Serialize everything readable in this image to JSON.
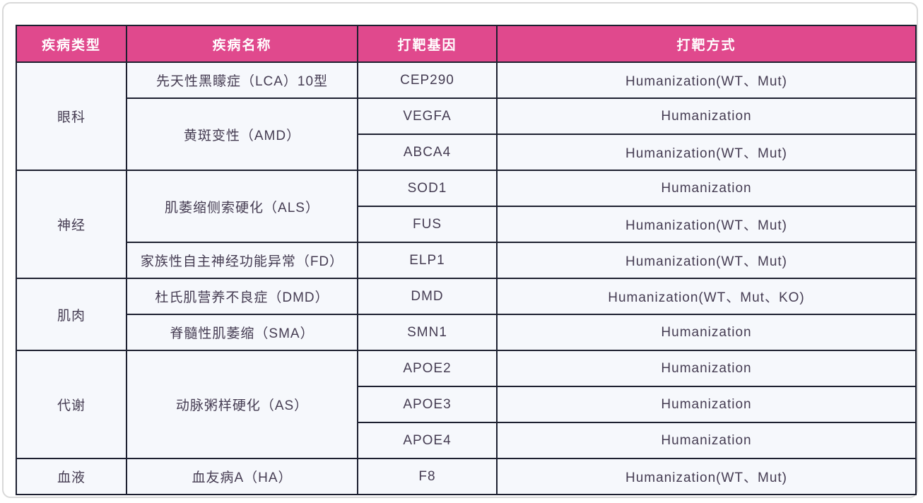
{
  "colors": {
    "header_bg": "#e0498d",
    "header_text": "#ffffff",
    "cell_bg": "#f6f8fc",
    "cell_text": "#453c52",
    "border": "#1d2030"
  },
  "table": {
    "columns": [
      {
        "key": "disease-type",
        "label": "疾病类型"
      },
      {
        "key": "disease-name",
        "label": "疾病名称"
      },
      {
        "key": "target-gene",
        "label": "打靶基因"
      },
      {
        "key": "target-method",
        "label": "打靶方式"
      }
    ],
    "rows": [
      {
        "cells": [
          {
            "col": "disease-type",
            "text": "眼科",
            "rowspan": 3
          },
          {
            "col": "disease-name",
            "text": "先天性黑矇症（LCA）10型"
          },
          {
            "col": "target-gene",
            "text": "CEP290"
          },
          {
            "col": "target-method",
            "text": "Humanization(WT、Mut)"
          }
        ]
      },
      {
        "cells": [
          {
            "col": "disease-name",
            "text": "黄斑变性（AMD）",
            "rowspan": 2
          },
          {
            "col": "target-gene",
            "text": "VEGFA"
          },
          {
            "col": "target-method",
            "text": "Humanization"
          }
        ]
      },
      {
        "cells": [
          {
            "col": "target-gene",
            "text": "ABCA4"
          },
          {
            "col": "target-method",
            "text": "Humanization(WT、Mut)"
          }
        ]
      },
      {
        "cells": [
          {
            "col": "disease-type",
            "text": "神经",
            "rowspan": 3
          },
          {
            "col": "disease-name",
            "text": "肌萎缩侧索硬化（ALS）",
            "rowspan": 2
          },
          {
            "col": "target-gene",
            "text": "SOD1"
          },
          {
            "col": "target-method",
            "text": "Humanization"
          }
        ]
      },
      {
        "cells": [
          {
            "col": "target-gene",
            "text": "FUS"
          },
          {
            "col": "target-method",
            "text": "Humanization(WT、Mut)"
          }
        ]
      },
      {
        "cells": [
          {
            "col": "disease-name",
            "text": "家族性自主神经功能异常（FD）"
          },
          {
            "col": "target-gene",
            "text": "ELP1"
          },
          {
            "col": "target-method",
            "text": "Humanization(WT、Mut)"
          }
        ]
      },
      {
        "cells": [
          {
            "col": "disease-type",
            "text": "肌肉",
            "rowspan": 2
          },
          {
            "col": "disease-name",
            "text": "杜氏肌营养不良症（DMD）"
          },
          {
            "col": "target-gene",
            "text": "DMD"
          },
          {
            "col": "target-method",
            "text": "Humanization(WT、Mut、KO)"
          }
        ]
      },
      {
        "cells": [
          {
            "col": "disease-name",
            "text": "脊髓性肌萎缩（SMA）"
          },
          {
            "col": "target-gene",
            "text": "SMN1"
          },
          {
            "col": "target-method",
            "text": "Humanization"
          }
        ]
      },
      {
        "cells": [
          {
            "col": "disease-type",
            "text": "代谢",
            "rowspan": 3
          },
          {
            "col": "disease-name",
            "text": "动脉粥样硬化（AS）",
            "rowspan": 3
          },
          {
            "col": "target-gene",
            "text": "APOE2"
          },
          {
            "col": "target-method",
            "text": "Humanization"
          }
        ]
      },
      {
        "cells": [
          {
            "col": "target-gene",
            "text": "APOE3"
          },
          {
            "col": "target-method",
            "text": "Humanization"
          }
        ]
      },
      {
        "cells": [
          {
            "col": "target-gene",
            "text": "APOE4"
          },
          {
            "col": "target-method",
            "text": "Humanization"
          }
        ]
      },
      {
        "cells": [
          {
            "col": "disease-type",
            "text": "血液"
          },
          {
            "col": "disease-name",
            "text": "血友病A（HA）"
          },
          {
            "col": "target-gene",
            "text": "F8"
          },
          {
            "col": "target-method",
            "text": "Humanization(WT、Mut)"
          }
        ]
      }
    ]
  }
}
